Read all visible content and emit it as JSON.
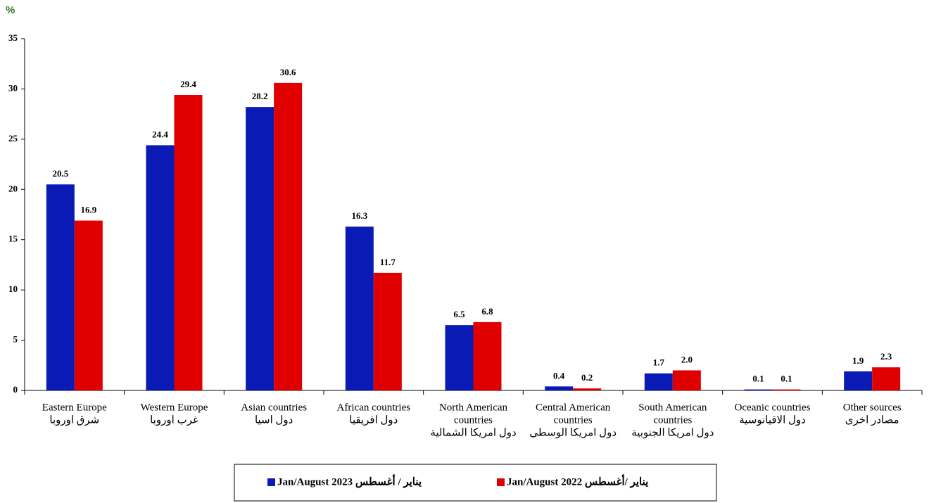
{
  "chart_data": {
    "type": "bar",
    "y_unit": "%",
    "categories": [
      [
        "Eastern Europe",
        "شرق اوروبا"
      ],
      [
        "Western Europe",
        "غرب اوروبا"
      ],
      [
        "Asian countries",
        "دول اسيا"
      ],
      [
        "African countries",
        "دول افريقيا"
      ],
      [
        "North American",
        "countries",
        "دول امريكا  الشمالية"
      ],
      [
        "Central American",
        "countries",
        "دول امريكا الوسطى"
      ],
      [
        "South American",
        "countries",
        "دول امريكا الجنوبية"
      ],
      [
        "Oceanic countries",
        "دول الاقيانوسية"
      ],
      [
        "Other sources",
        "مصادر اخرى"
      ]
    ],
    "series": [
      {
        "name": "Jan/August 2023 يناير / أغسطس",
        "color": "#0a1ab4",
        "values": [
          20.5,
          24.4,
          28.2,
          16.3,
          6.5,
          0.4,
          1.7,
          0.1,
          1.9
        ],
        "value_labels": [
          "20.5",
          "24.4",
          "28.2",
          "16.3",
          "6.5",
          "0.4",
          "1.7",
          "0.1",
          "1.9"
        ]
      },
      {
        "name": "Jan/August 2022 يناير /أغسطس",
        "color": "#e00000",
        "values": [
          16.9,
          29.4,
          30.6,
          11.7,
          6.8,
          0.2,
          2.0,
          0.1,
          2.3
        ],
        "value_labels": [
          "16.9",
          "29.4",
          "30.6",
          "11.7",
          "6.8",
          "0.2",
          "2.0",
          "0.1",
          "2.3"
        ]
      }
    ],
    "ylim": [
      0,
      35
    ],
    "yticks": [
      0,
      5,
      10,
      15,
      20,
      25,
      30,
      35
    ],
    "legend": "bottom"
  }
}
